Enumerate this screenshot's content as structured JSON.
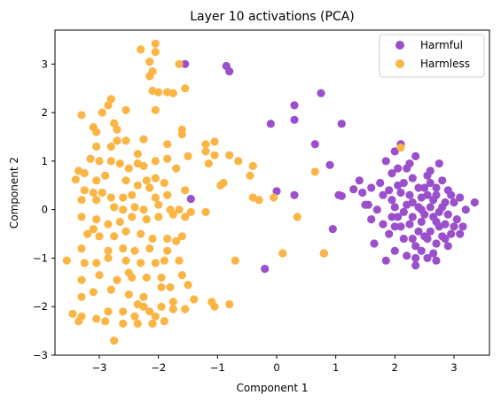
{
  "chart_data": {
    "type": "scatter",
    "title": "Layer 10 activations (PCA)",
    "xlabel": "Component 1",
    "ylabel": "Component 2",
    "xlim": [
      -3.75,
      3.6
    ],
    "ylim": [
      -3.0,
      3.7
    ],
    "x_ticks": [
      -3,
      -2,
      -1,
      0,
      1,
      2,
      3
    ],
    "y_ticks": [
      -3,
      -2,
      -1,
      0,
      1,
      2,
      3
    ],
    "grid": false,
    "legend": {
      "position": "top-right"
    },
    "series": [
      {
        "name": "Harmful",
        "color": "#9b4fcc",
        "points": [
          [
            -1.55,
            3.0
          ],
          [
            -0.85,
            2.96
          ],
          [
            -0.8,
            2.85
          ],
          [
            0.3,
            2.15
          ],
          [
            0.75,
            2.4
          ],
          [
            0.3,
            1.85
          ],
          [
            1.1,
            1.77
          ],
          [
            -0.1,
            1.77
          ],
          [
            0.65,
            1.35
          ],
          [
            0.9,
            0.92
          ],
          [
            0.0,
            0.38
          ],
          [
            0.3,
            0.3
          ],
          [
            -1.45,
            0.22
          ],
          [
            0.95,
            -0.4
          ],
          [
            -0.2,
            -1.22
          ],
          [
            0.8,
            -0.9
          ],
          [
            1.05,
            0.3
          ],
          [
            1.1,
            0.28
          ],
          [
            1.3,
            0.42
          ],
          [
            1.4,
            0.6
          ],
          [
            1.45,
            0.35
          ],
          [
            1.55,
            0.1
          ],
          [
            1.6,
            0.45
          ],
          [
            1.7,
            0.0
          ],
          [
            1.8,
            0.3
          ],
          [
            1.65,
            -0.7
          ],
          [
            1.85,
            1.0
          ],
          [
            1.95,
            0.75
          ],
          [
            1.9,
            -0.5
          ],
          [
            2.0,
            1.2
          ],
          [
            1.95,
            0.2
          ],
          [
            2.05,
            -0.15
          ],
          [
            2.1,
            -0.35
          ],
          [
            2.15,
            0.55
          ],
          [
            2.2,
            0.85
          ],
          [
            2.25,
            0.3
          ],
          [
            2.3,
            -0.6
          ],
          [
            2.35,
            1.1
          ],
          [
            2.4,
            0.05
          ],
          [
            2.45,
            -0.25
          ],
          [
            2.5,
            0.45
          ],
          [
            2.55,
            0.7
          ],
          [
            2.6,
            -0.45
          ],
          [
            2.65,
            0.2
          ],
          [
            2.7,
            -0.7
          ],
          [
            2.75,
            0.95
          ],
          [
            2.8,
            0.05
          ],
          [
            2.85,
            -0.3
          ],
          [
            2.9,
            0.4
          ],
          [
            2.95,
            -0.5
          ],
          [
            3.0,
            0.15
          ],
          [
            3.05,
            -0.2
          ],
          [
            3.1,
            0.25
          ],
          [
            3.15,
            -0.35
          ],
          [
            3.2,
            0.0
          ],
          [
            3.35,
            0.15
          ],
          [
            2.2,
            -0.95
          ],
          [
            2.35,
            -1.15
          ],
          [
            2.55,
            -1.0
          ],
          [
            2.7,
            -1.05
          ],
          [
            1.85,
            -1.05
          ],
          [
            2.0,
            -0.85
          ],
          [
            2.45,
            -0.85
          ],
          [
            2.65,
            -0.9
          ],
          [
            2.8,
            -0.55
          ],
          [
            2.9,
            -0.75
          ],
          [
            2.05,
            0.5
          ],
          [
            2.15,
            -0.05
          ],
          [
            2.3,
            0.15
          ],
          [
            2.4,
            -0.45
          ],
          [
            2.5,
            -0.1
          ],
          [
            2.6,
            0.55
          ],
          [
            2.7,
            0.3
          ],
          [
            2.8,
            0.6
          ],
          [
            2.3,
            0.65
          ],
          [
            2.1,
            0.35
          ],
          [
            2.25,
            -0.3
          ],
          [
            2.45,
            0.25
          ],
          [
            2.55,
            -0.6
          ],
          [
            2.65,
            -0.15
          ],
          [
            2.75,
            -0.35
          ],
          [
            2.85,
            0.15
          ],
          [
            2.95,
            0.3
          ],
          [
            1.75,
            0.55
          ],
          [
            1.6,
            -0.2
          ],
          [
            1.5,
            0.1
          ],
          [
            2.0,
            -0.35
          ],
          [
            2.2,
            0.1
          ],
          [
            2.4,
            0.45
          ],
          [
            2.6,
            0.05
          ],
          [
            2.75,
            -0.05
          ],
          [
            2.9,
            -0.1
          ],
          [
            3.0,
            -0.35
          ],
          [
            2.35,
            -0.75
          ],
          [
            2.5,
            -0.55
          ],
          [
            2.15,
            -0.6
          ],
          [
            1.95,
            -0.15
          ],
          [
            1.8,
            -0.3
          ],
          [
            2.05,
            0.85
          ],
          [
            2.6,
            0.8
          ],
          [
            2.7,
            0.45
          ],
          [
            2.3,
            -0.15
          ],
          [
            2.45,
            0.0
          ],
          [
            2.55,
            0.3
          ],
          [
            2.1,
            1.35
          ],
          [
            2.35,
            -1.0
          ],
          [
            3.1,
            -0.5
          ],
          [
            2.85,
            -0.6
          ],
          [
            2.0,
            0.05
          ],
          [
            1.9,
            0.4
          ],
          [
            2.25,
            0.95
          ],
          [
            2.7,
            -0.25
          ]
        ]
      },
      {
        "name": "Harmless",
        "color": "#fbb545",
        "points": [
          [
            -2.3,
            3.3
          ],
          [
            -2.05,
            3.42
          ],
          [
            -2.05,
            3.25
          ],
          [
            -2.15,
            3.05
          ],
          [
            -1.65,
            3.0
          ],
          [
            -2.1,
            2.85
          ],
          [
            -2.15,
            2.75
          ],
          [
            -2.8,
            2.28
          ],
          [
            -2.85,
            2.15
          ],
          [
            -2.55,
            2.05
          ],
          [
            -2.95,
            2.0
          ],
          [
            -3.3,
            1.95
          ],
          [
            -2.1,
            2.45
          ],
          [
            -2.0,
            2.42
          ],
          [
            -1.85,
            2.42
          ],
          [
            -1.75,
            2.4
          ],
          [
            -1.55,
            2.5
          ],
          [
            -2.05,
            2.05
          ],
          [
            -2.75,
            1.78
          ],
          [
            -2.7,
            1.65
          ],
          [
            -3.1,
            1.7
          ],
          [
            -3.05,
            1.6
          ],
          [
            -2.55,
            1.42
          ],
          [
            -2.7,
            1.42
          ],
          [
            -2.25,
            1.45
          ],
          [
            -1.6,
            1.65
          ],
          [
            -1.6,
            1.55
          ],
          [
            -1.85,
            1.35
          ],
          [
            -1.2,
            1.35
          ],
          [
            -1.05,
            1.4
          ],
          [
            -3.05,
            1.3
          ],
          [
            -2.8,
            1.3
          ],
          [
            -3.15,
            1.05
          ],
          [
            -3.0,
            1.0
          ],
          [
            -2.8,
            1.0
          ],
          [
            -2.65,
            0.95
          ],
          [
            -2.5,
            0.85
          ],
          [
            -3.35,
            0.8
          ],
          [
            -3.25,
            0.75
          ],
          [
            -3.4,
            0.62
          ],
          [
            -3.05,
            0.6
          ],
          [
            -3.25,
            0.4
          ],
          [
            -3.1,
            0.35
          ],
          [
            -2.95,
            0.35
          ],
          [
            -2.35,
            1.15
          ],
          [
            -2.25,
            0.9
          ],
          [
            -2.05,
            1.0
          ],
          [
            -1.85,
            1.05
          ],
          [
            -1.5,
            1.1
          ],
          [
            -1.2,
            1.2
          ],
          [
            -1.05,
            1.12
          ],
          [
            -0.8,
            1.12
          ],
          [
            -0.65,
            1.0
          ],
          [
            -1.15,
            0.95
          ],
          [
            -2.2,
            0.6
          ],
          [
            -2.05,
            0.65
          ],
          [
            -2.35,
            0.5
          ],
          [
            -2.15,
            0.45
          ],
          [
            -2.55,
            0.6
          ],
          [
            -2.45,
            0.3
          ],
          [
            -2.6,
            0.25
          ],
          [
            -2.8,
            0.25
          ],
          [
            -3.05,
            0.2
          ],
          [
            -3.3,
            0.2
          ],
          [
            -2.05,
            0.25
          ],
          [
            -1.85,
            0.3
          ],
          [
            -1.55,
            0.4
          ],
          [
            -0.95,
            0.5
          ],
          [
            -0.9,
            0.55
          ],
          [
            -0.4,
            0.9
          ],
          [
            -0.45,
            0.7
          ],
          [
            -0.4,
            0.25
          ],
          [
            -0.05,
            0.25
          ],
          [
            -0.3,
            0.2
          ],
          [
            0.35,
            -0.15
          ],
          [
            -2.75,
            0.05
          ],
          [
            -2.6,
            0.0
          ],
          [
            -2.4,
            0.05
          ],
          [
            -2.25,
            0.0
          ],
          [
            -2.0,
            0.1
          ],
          [
            -1.8,
            0.0
          ],
          [
            -1.65,
            0.0
          ],
          [
            -1.2,
            -0.05
          ],
          [
            -3.3,
            -0.15
          ],
          [
            -3.05,
            -0.2
          ],
          [
            -2.85,
            -0.3
          ],
          [
            -2.65,
            -0.25
          ],
          [
            -2.45,
            -0.15
          ],
          [
            -2.2,
            -0.2
          ],
          [
            -2.0,
            -0.15
          ],
          [
            -1.75,
            -0.1
          ],
          [
            -1.55,
            -0.15
          ],
          [
            -3.1,
            -0.4
          ],
          [
            -3.0,
            -0.55
          ],
          [
            -2.75,
            -0.55
          ],
          [
            -2.55,
            -0.45
          ],
          [
            -2.3,
            -0.5
          ],
          [
            -2.1,
            -0.6
          ],
          [
            -1.85,
            -0.6
          ],
          [
            -1.6,
            -0.55
          ],
          [
            -3.3,
            -0.8
          ],
          [
            -2.85,
            -0.85
          ],
          [
            -2.6,
            -0.8
          ],
          [
            -2.4,
            -0.85
          ],
          [
            -2.15,
            -0.8
          ],
          [
            -1.85,
            -0.85
          ],
          [
            -1.7,
            -0.65
          ],
          [
            -3.55,
            -1.05
          ],
          [
            -3.25,
            -1.1
          ],
          [
            -3.05,
            -1.1
          ],
          [
            -2.85,
            -1.0
          ],
          [
            -2.55,
            -1.05
          ],
          [
            -2.3,
            -1.1
          ],
          [
            -2.05,
            -1.1
          ],
          [
            -1.9,
            -1.05
          ],
          [
            -1.65,
            -1.05
          ],
          [
            -0.7,
            -1.05
          ],
          [
            0.1,
            -0.9
          ],
          [
            0.8,
            -0.9
          ],
          [
            -3.3,
            -1.45
          ],
          [
            -3.0,
            -1.35
          ],
          [
            -2.7,
            -1.45
          ],
          [
            -2.45,
            -1.4
          ],
          [
            -2.2,
            -1.4
          ],
          [
            -1.95,
            -1.4
          ],
          [
            -1.6,
            -1.35
          ],
          [
            -3.3,
            -1.8
          ],
          [
            -3.1,
            -1.7
          ],
          [
            -2.8,
            -1.65
          ],
          [
            -2.5,
            -1.75
          ],
          [
            -2.25,
            -1.8
          ],
          [
            -1.95,
            -1.6
          ],
          [
            -1.8,
            -1.6
          ],
          [
            -1.5,
            -1.55
          ],
          [
            -1.75,
            -1.9
          ],
          [
            -3.45,
            -2.15
          ],
          [
            -3.3,
            -2.2
          ],
          [
            -3.05,
            -2.25
          ],
          [
            -2.85,
            -2.1
          ],
          [
            -2.6,
            -2.1
          ],
          [
            -2.4,
            -2.2
          ],
          [
            -2.15,
            -2.1
          ],
          [
            -1.95,
            -2.0
          ],
          [
            -3.35,
            -2.3
          ],
          [
            -2.9,
            -2.3
          ],
          [
            -2.6,
            -2.35
          ],
          [
            -2.35,
            -2.35
          ],
          [
            -2.1,
            -2.35
          ],
          [
            -1.9,
            -2.3
          ],
          [
            -1.75,
            -2.05
          ],
          [
            -1.55,
            -2.05
          ],
          [
            -1.4,
            -1.85
          ],
          [
            -1.1,
            -1.9
          ],
          [
            -1.05,
            -2.0
          ],
          [
            -0.8,
            -1.95
          ],
          [
            -2.75,
            -2.7
          ],
          [
            -2.25,
            -2.0
          ],
          [
            -2.05,
            -2.2
          ],
          [
            -2.35,
            -1.95
          ],
          [
            0.65,
            0.78
          ],
          [
            2.1,
            1.28
          ],
          [
            -1.45,
            -0.05
          ],
          [
            -2.9,
            0.7
          ],
          [
            -3.2,
            -0.5
          ],
          [
            -1.9,
            0.55
          ],
          [
            -2.5,
            -1.3
          ],
          [
            -1.7,
            0.85
          ],
          [
            -2.35,
            0.95
          ]
        ]
      }
    ]
  }
}
